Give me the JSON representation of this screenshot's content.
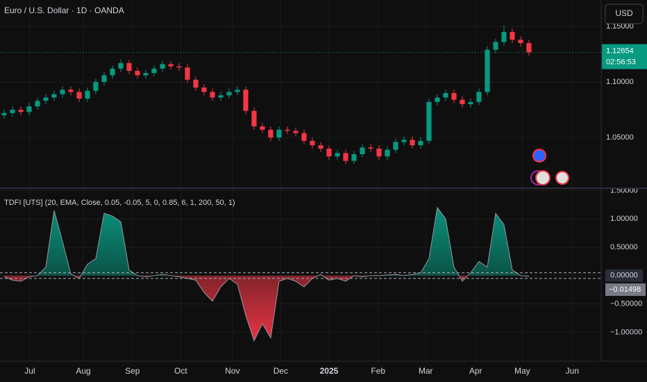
{
  "header": {
    "symbol": "Euro / U.S. Dollar · 1D · OANDA",
    "currency": "USD",
    "countdown": "02:56:53"
  },
  "chart_data": [
    {
      "type": "candlestick",
      "up_color": "#089981",
      "down_color": "#f23645",
      "open": [
        1.07,
        1.072,
        1.075,
        1.073,
        1.078,
        1.083,
        1.086,
        1.089,
        1.093,
        1.091,
        1.085,
        1.092,
        1.1,
        1.106,
        1.112,
        1.117,
        1.11,
        1.106,
        1.108,
        1.112,
        1.116,
        1.114,
        1.113,
        1.102,
        1.095,
        1.091,
        1.086,
        1.088,
        1.091,
        1.093,
        1.074,
        1.06,
        1.057,
        1.05,
        1.057,
        1.056,
        1.054,
        1.047,
        1.043,
        1.04,
        1.033,
        1.036,
        1.029,
        1.035,
        1.041,
        1.04,
        1.033,
        1.039,
        1.046,
        1.048,
        1.043,
        1.047,
        1.082,
        1.086,
        1.09,
        1.084,
        1.08,
        1.082,
        1.091,
        1.129,
        1.136,
        1.145,
        1.138,
        1.135
      ],
      "high": [
        1.075,
        1.078,
        1.078,
        1.081,
        1.086,
        1.089,
        1.092,
        1.096,
        1.096,
        1.094,
        1.095,
        1.103,
        1.109,
        1.115,
        1.12,
        1.12,
        1.113,
        1.111,
        1.115,
        1.119,
        1.119,
        1.117,
        1.116,
        1.105,
        1.098,
        1.094,
        1.091,
        1.094,
        1.096,
        1.096,
        1.077,
        1.063,
        1.06,
        1.06,
        1.06,
        1.059,
        1.057,
        1.05,
        1.046,
        1.043,
        1.039,
        1.039,
        1.038,
        1.044,
        1.044,
        1.043,
        1.042,
        1.049,
        1.051,
        1.051,
        1.05,
        1.085,
        1.089,
        1.093,
        1.093,
        1.087,
        1.085,
        1.094,
        1.132,
        1.139,
        1.151,
        1.148,
        1.141,
        1.138
      ],
      "low": [
        1.067,
        1.069,
        1.07,
        1.07,
        1.075,
        1.08,
        1.083,
        1.086,
        1.088,
        1.082,
        1.082,
        1.089,
        1.097,
        1.103,
        1.109,
        1.107,
        1.103,
        1.103,
        1.105,
        1.109,
        1.111,
        1.11,
        1.099,
        1.092,
        1.088,
        1.083,
        1.083,
        1.085,
        1.088,
        1.071,
        1.057,
        1.054,
        1.047,
        1.047,
        1.053,
        1.051,
        1.044,
        1.04,
        1.037,
        1.03,
        1.03,
        1.026,
        1.026,
        1.032,
        1.037,
        1.03,
        1.03,
        1.036,
        1.043,
        1.04,
        1.04,
        1.044,
        1.079,
        1.083,
        1.081,
        1.077,
        1.077,
        1.079,
        1.088,
        1.126,
        1.133,
        1.135,
        1.132,
        1.1235
      ],
      "close": [
        1.072,
        1.075,
        1.073,
        1.078,
        1.083,
        1.086,
        1.089,
        1.093,
        1.091,
        1.085,
        1.092,
        1.1,
        1.106,
        1.112,
        1.117,
        1.11,
        1.106,
        1.108,
        1.112,
        1.116,
        1.114,
        1.113,
        1.102,
        1.095,
        1.091,
        1.086,
        1.088,
        1.091,
        1.093,
        1.074,
        1.06,
        1.057,
        1.05,
        1.057,
        1.056,
        1.054,
        1.047,
        1.043,
        1.04,
        1.033,
        1.036,
        1.029,
        1.035,
        1.041,
        1.04,
        1.033,
        1.039,
        1.046,
        1.048,
        1.043,
        1.047,
        1.082,
        1.086,
        1.09,
        1.084,
        1.08,
        1.082,
        1.091,
        1.129,
        1.136,
        1.145,
        1.138,
        1.135,
        1.12654
      ],
      "last_price": 1.12654,
      "xlim": [
        -0.5,
        71.67
      ],
      "ylim": [
        1.005,
        1.17375
      ],
      "yticks": [
        {
          "value": 1.05,
          "label": "1.05000"
        },
        {
          "value": 1.1,
          "label": "1.10000"
        },
        {
          "value": 1.15,
          "label": "1.15000"
        }
      ],
      "grid": true
    },
    {
      "type": "area",
      "title": "TDFI [UTS] (20, EMA, Close, 0.05, -0.05, 5, 0, 0.85, 6, 1, 200, 50, 1)",
      "pos_color": "#089981",
      "neg_color": "#f23645",
      "line_color": "#9598a1",
      "values": [
        -0.02,
        -0.08,
        -0.1,
        -0.02,
        0.0,
        0.15,
        1.15,
        0.6,
        0.03,
        -0.05,
        0.2,
        0.3,
        1.1,
        1.05,
        0.95,
        0.1,
        0.0,
        -0.02,
        0.0,
        0.02,
        0.0,
        -0.02,
        -0.05,
        -0.08,
        -0.3,
        -0.45,
        -0.2,
        -0.05,
        -0.15,
        -0.7,
        -1.15,
        -0.85,
        -1.1,
        -0.1,
        -0.05,
        -0.1,
        -0.2,
        -0.05,
        0.02,
        -0.08,
        -0.05,
        -0.1,
        0.0,
        -0.02,
        0.0,
        0.0,
        0.01,
        0.02,
        0.0,
        0.02,
        0.05,
        0.3,
        1.2,
        1.0,
        0.15,
        -0.1,
        0.05,
        0.25,
        0.15,
        1.1,
        0.9,
        0.1,
        0.0,
        -0.01498
      ],
      "last_value": {
        "value": -0.01498,
        "label": "−0.01498"
      },
      "levels": [
        0.05,
        -0.05
      ],
      "xlim": [
        -0.5,
        71.67
      ],
      "ylim": [
        -1.51,
        1.53
      ],
      "yticks": [
        {
          "value": -1,
          "label": "−1.00000"
        },
        {
          "value": -0.5,
          "label": "−0.50000"
        },
        {
          "value": 0,
          "label": "0.00000"
        },
        {
          "value": 0.5,
          "label": "0.50000"
        },
        {
          "value": 1,
          "label": "1.00000"
        },
        {
          "value": 1.5,
          "label": "1.50000"
        }
      ],
      "xticks": [
        {
          "value": 3.08,
          "label": "Jul"
        },
        {
          "value": 9.5,
          "label": "Aug"
        },
        {
          "value": 15.4,
          "label": "Sep"
        },
        {
          "value": 21.2,
          "label": "Oct"
        },
        {
          "value": 27.4,
          "label": "Nov"
        },
        {
          "value": 33.2,
          "label": "Dec"
        },
        {
          "value": 39,
          "label": "2025"
        },
        {
          "value": 44.9,
          "label": "Feb"
        },
        {
          "value": 50.6,
          "label": "Mar"
        },
        {
          "value": 56.6,
          "label": "Apr"
        },
        {
          "value": 62.2,
          "label": "May"
        },
        {
          "value": 68.2,
          "label": "Jun"
        }
      ],
      "grid": true
    }
  ]
}
